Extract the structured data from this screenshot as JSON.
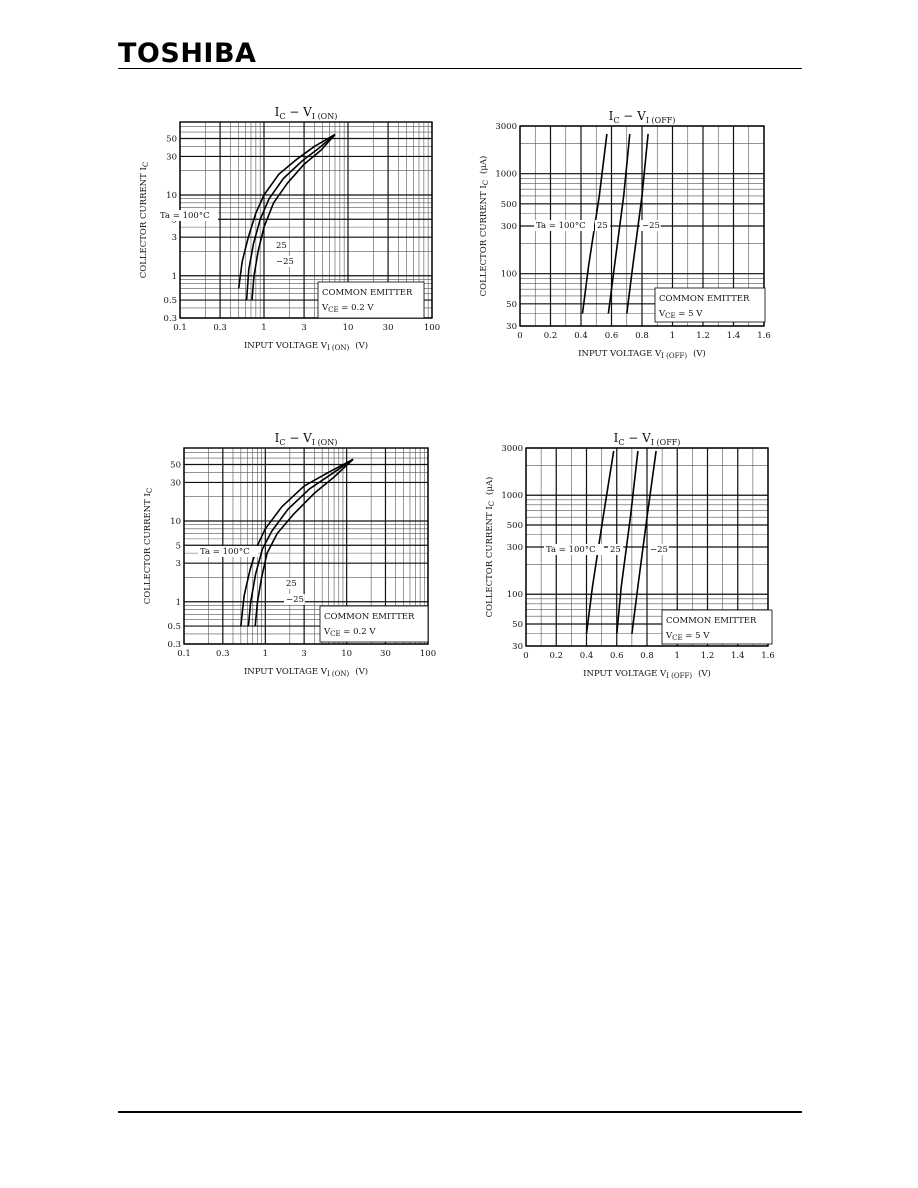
{
  "header": {
    "brand": "TOSHIBA"
  },
  "chart_data": [
    {
      "id": "on1",
      "type": "line",
      "title_main": "I",
      "title_sub1": "C",
      "title_mid": " − V",
      "title_sub2": "I (ON)",
      "xlabel_main": "INPUT VOLTAGE   V",
      "xlabel_sub": "I (ON)",
      "xlabel_unit": "(V)",
      "ylabel_main": "COLLECTOR CURRENT  I",
      "ylabel_sub": "C",
      "ylabel_unit": "",
      "xscale": "log",
      "yscale": "log",
      "xlim": [
        0.1,
        100
      ],
      "ylim": [
        0.3,
        80
      ],
      "xticks": [
        0.1,
        0.3,
        1,
        3,
        10,
        30,
        100
      ],
      "xtick_labels": [
        "0.1",
        "0.3",
        "1",
        "3",
        "10",
        "30",
        "100"
      ],
      "yticks": [
        0.3,
        0.5,
        1,
        3,
        5,
        10,
        30,
        50
      ],
      "ytick_labels": [
        "0.3",
        "0.5",
        "1",
        "3",
        "5",
        "10",
        "30",
        "50"
      ],
      "grid": true,
      "box_line1": "COMMON EMITTER",
      "box_line2": "V",
      "box_line2_sub": "CE",
      "box_line2_rest": " = 0.2 V",
      "series": [
        {
          "name": "Ta = 100°C",
          "x": [
            0.5,
            0.55,
            0.65,
            0.8,
            1.0,
            1.5,
            2.5,
            4,
            7
          ],
          "y": [
            0.7,
            1.5,
            3.0,
            6.0,
            10,
            18,
            28,
            40,
            56
          ]
        },
        {
          "name": "25",
          "x": [
            0.62,
            0.66,
            0.75,
            0.9,
            1.15,
            1.7,
            2.8,
            4.5,
            7
          ],
          "y": [
            0.5,
            1.2,
            2.5,
            5.0,
            9.0,
            16,
            26,
            38,
            56
          ]
        },
        {
          "name": "−25",
          "x": [
            0.72,
            0.76,
            0.85,
            1.0,
            1.3,
            1.9,
            3.0,
            4.8,
            7
          ],
          "y": [
            0.5,
            1.0,
            2.0,
            4.0,
            8.0,
            14,
            24,
            36,
            56
          ]
        }
      ]
    },
    {
      "id": "off1",
      "type": "line",
      "title_main": "I",
      "title_sub1": "C",
      "title_mid": " − V",
      "title_sub2": "I (OFF)",
      "xlabel_main": "INPUT VOLTAGE   V",
      "xlabel_sub": "I (OFF)",
      "xlabel_unit": "(V)",
      "ylabel_main": "COLLECTOR CURRENT  I",
      "ylabel_sub": "C",
      "ylabel_unit": "(μA)",
      "xscale": "linear",
      "yscale": "log",
      "xlim": [
        0,
        1.6
      ],
      "ylim": [
        30,
        3000
      ],
      "xticks": [
        0,
        0.2,
        0.4,
        0.6,
        0.8,
        1.0,
        1.2,
        1.4,
        1.6
      ],
      "xtick_labels": [
        "0",
        "0.2",
        "0.4",
        "0.6",
        "0.8",
        "1",
        "1.2",
        "1.4",
        "1.6"
      ],
      "yticks": [
        30,
        50,
        100,
        300,
        500,
        1000,
        3000
      ],
      "ytick_labels": [
        "30",
        "50",
        "100",
        "300",
        "500",
        "1000",
        "3000"
      ],
      "grid": true,
      "box_line1": "COMMON EMITTER",
      "box_line2": "V",
      "box_line2_sub": "CE",
      "box_line2_rest": " = 5 V",
      "series": [
        {
          "name": "Ta = 100°C",
          "x": [
            0.41,
            0.45,
            0.52,
            0.57
          ],
          "y": [
            40,
            120,
            600,
            2500
          ]
        },
        {
          "name": "25",
          "x": [
            0.58,
            0.62,
            0.68,
            0.72
          ],
          "y": [
            40,
            120,
            600,
            2500
          ]
        },
        {
          "name": "−25",
          "x": [
            0.7,
            0.74,
            0.8,
            0.84
          ],
          "y": [
            40,
            120,
            600,
            2500
          ]
        }
      ]
    },
    {
      "id": "on2",
      "type": "line",
      "title_main": "I",
      "title_sub1": "C",
      "title_mid": " − V",
      "title_sub2": "I (ON)",
      "xlabel_main": "INPUT VOLTAGE   V",
      "xlabel_sub": "I (ON)",
      "xlabel_unit": "(V)",
      "ylabel_main": "COLLECTOR CURRENT  I",
      "ylabel_sub": "C",
      "ylabel_unit": "",
      "xscale": "log",
      "yscale": "log",
      "xlim": [
        0.1,
        100
      ],
      "ylim": [
        0.3,
        80
      ],
      "xticks": [
        0.1,
        0.3,
        1,
        3,
        10,
        30,
        100
      ],
      "xtick_labels": [
        "0.1",
        "0.3",
        "1",
        "3",
        "10",
        "30",
        "100"
      ],
      "yticks": [
        0.3,
        0.5,
        1,
        3,
        5,
        10,
        30,
        50
      ],
      "ytick_labels": [
        "0.3",
        "0.5",
        "1",
        "3",
        "5",
        "10",
        "30",
        "50"
      ],
      "grid": true,
      "box_line1": "COMMON EMITTER",
      "box_line2": "V",
      "box_line2_sub": "CE",
      "box_line2_rest": " = 0.2 V",
      "series": [
        {
          "name": "Ta = 100°C",
          "x": [
            0.5,
            0.55,
            0.65,
            0.8,
            1.0,
            1.6,
            3,
            6,
            12
          ],
          "y": [
            0.5,
            1.2,
            2.5,
            5.0,
            8.0,
            15,
            27,
            40,
            58
          ]
        },
        {
          "name": "25",
          "x": [
            0.62,
            0.66,
            0.76,
            0.92,
            1.2,
            1.9,
            3.5,
            6.5,
            12
          ],
          "y": [
            0.5,
            1.0,
            2.2,
            4.5,
            7.5,
            14,
            25,
            38,
            58
          ]
        },
        {
          "name": "−25",
          "x": [
            0.75,
            0.8,
            0.9,
            1.05,
            1.4,
            2.2,
            4.0,
            7.0,
            12
          ],
          "y": [
            0.5,
            1.0,
            2.0,
            4.0,
            7.0,
            12,
            22,
            35,
            58
          ]
        }
      ]
    },
    {
      "id": "off2",
      "type": "line",
      "title_main": "I",
      "title_sub1": "C",
      "title_mid": " − V",
      "title_sub2": "I (OFF)",
      "xlabel_main": "INPUT VOLTAGE   V",
      "xlabel_sub": "I (OFF)",
      "xlabel_unit": "(V)",
      "ylabel_main": "COLLECTOR CURRENT  I",
      "ylabel_sub": "C",
      "ylabel_unit": "(μA)",
      "xscale": "linear",
      "yscale": "log",
      "xlim": [
        0,
        1.6
      ],
      "ylim": [
        30,
        3000
      ],
      "xticks": [
        0,
        0.2,
        0.4,
        0.6,
        0.8,
        1.0,
        1.2,
        1.4,
        1.6
      ],
      "xtick_labels": [
        "0",
        "0.2",
        "0.4",
        "0.6",
        "0.8",
        "1",
        "1.2",
        "1.4",
        "1.6"
      ],
      "yticks": [
        30,
        50,
        100,
        300,
        500,
        1000,
        3000
      ],
      "ytick_labels": [
        "30",
        "50",
        "100",
        "300",
        "500",
        "1000",
        "3000"
      ],
      "grid": true,
      "box_line1": "COMMON EMITTER",
      "box_line2": "V",
      "box_line2_sub": "CE",
      "box_line2_rest": " = 5 V",
      "series": [
        {
          "name": "Ta = 100°C",
          "x": [
            0.4,
            0.44,
            0.51,
            0.58
          ],
          "y": [
            40,
            120,
            600,
            2800
          ]
        },
        {
          "name": "25",
          "x": [
            0.6,
            0.63,
            0.69,
            0.74
          ],
          "y": [
            40,
            120,
            600,
            2800
          ]
        },
        {
          "name": "−25",
          "x": [
            0.7,
            0.74,
            0.8,
            0.86
          ],
          "y": [
            40,
            120,
            600,
            2800
          ]
        }
      ]
    }
  ]
}
